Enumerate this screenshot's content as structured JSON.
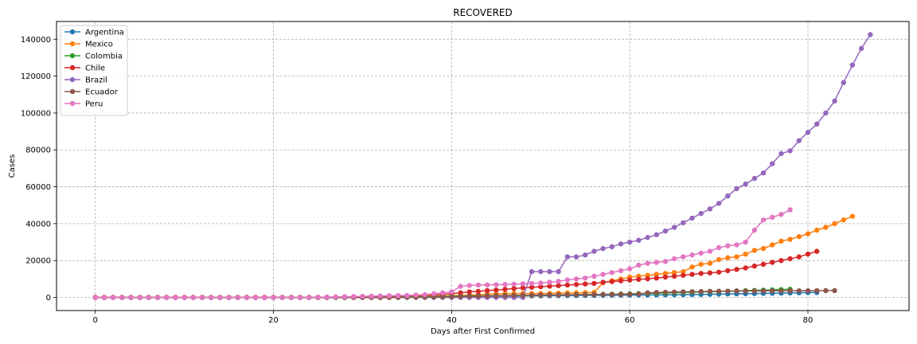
{
  "chart_data": {
    "type": "line",
    "title": "RECOVERED",
    "xlabel": "Days after First Confirmed",
    "ylabel": "Cases",
    "xlim": [
      -4.35,
      91.35
    ],
    "ylim": [
      -7125,
      149625
    ],
    "xticks": [
      0,
      20,
      40,
      60,
      80
    ],
    "yticks": [
      0,
      20000,
      40000,
      60000,
      80000,
      100000,
      120000,
      140000
    ],
    "grid": true,
    "legend_position": "upper-left",
    "series": [
      {
        "name": "Argentina",
        "color": "#1f77b4",
        "x": [
          0,
          1,
          2,
          3,
          4,
          5,
          6,
          7,
          8,
          9,
          10,
          11,
          12,
          13,
          14,
          15,
          16,
          17,
          18,
          19,
          20,
          21,
          22,
          23,
          24,
          25,
          26,
          27,
          28,
          29,
          30,
          31,
          32,
          33,
          34,
          35,
          36,
          37,
          38,
          39,
          40,
          41,
          42,
          43,
          44,
          45,
          46,
          47,
          48,
          49,
          50,
          51,
          52,
          53,
          54,
          55,
          56,
          57,
          58,
          59,
          60,
          61,
          62,
          63,
          64,
          65,
          66,
          67,
          68,
          69,
          70,
          71,
          72,
          73,
          74,
          75,
          76,
          77,
          78,
          79,
          80,
          81
        ],
        "y": [
          0,
          0,
          0,
          0,
          0,
          0,
          0,
          0,
          0,
          0,
          0,
          0,
          0,
          0,
          0,
          0,
          0,
          0,
          0,
          0,
          0,
          0,
          0,
          0,
          0,
          0,
          30,
          40,
          60,
          80,
          100,
          130,
          170,
          200,
          240,
          280,
          320,
          360,
          400,
          440,
          480,
          520,
          560,
          600,
          640,
          680,
          720,
          760,
          800,
          840,
          880,
          920,
          960,
          1000,
          1040,
          1080,
          1110,
          1140,
          1180,
          1220,
          1260,
          1300,
          1340,
          1380,
          1420,
          1460,
          1500,
          1560,
          1620,
          1700,
          1780,
          1860,
          1940,
          2020,
          2100,
          2180,
          2260,
          2340,
          2420,
          2500,
          2580,
          2650
        ]
      },
      {
        "name": "Mexico",
        "color": "#ff7f0e",
        "x": [
          0,
          1,
          2,
          3,
          4,
          5,
          6,
          7,
          8,
          9,
          10,
          11,
          12,
          13,
          14,
          15,
          16,
          17,
          18,
          19,
          20,
          21,
          22,
          23,
          24,
          25,
          26,
          27,
          28,
          29,
          30,
          31,
          32,
          33,
          34,
          35,
          36,
          37,
          38,
          39,
          40,
          41,
          42,
          43,
          44,
          45,
          46,
          47,
          48,
          49,
          50,
          51,
          52,
          53,
          54,
          55,
          56,
          57,
          58,
          59,
          60,
          61,
          62,
          63,
          64,
          65,
          66,
          67,
          68,
          69,
          70,
          71,
          72,
          73,
          74,
          75,
          76,
          77,
          78,
          79,
          80,
          81,
          82,
          83,
          84,
          85
        ],
        "y": [
          0,
          0,
          0,
          0,
          0,
          0,
          0,
          0,
          0,
          0,
          0,
          0,
          0,
          0,
          0,
          0,
          0,
          0,
          0,
          0,
          0,
          0,
          0,
          0,
          0,
          0,
          0,
          0,
          0,
          0,
          0,
          0,
          0,
          0,
          0,
          400,
          500,
          600,
          700,
          800,
          900,
          1100,
          1300,
          1500,
          1700,
          1900,
          2000,
          2100,
          2125,
          2125,
          2125,
          2200,
          2300,
          2400,
          2500,
          2600,
          2700,
          8000,
          9000,
          10000,
          11000,
          11500,
          12000,
          12500,
          13000,
          13500,
          14000,
          16500,
          18000,
          18500,
          20500,
          21500,
          22000,
          23500,
          25500,
          26500,
          28500,
          30500,
          31500,
          33000,
          34500,
          36500,
          38000,
          40000,
          42000,
          44000
        ]
      },
      {
        "name": "Colombia",
        "color": "#2ca02c",
        "x": [
          0,
          1,
          2,
          3,
          4,
          5,
          6,
          7,
          8,
          9,
          10,
          11,
          12,
          13,
          14,
          15,
          16,
          17,
          18,
          19,
          20,
          21,
          22,
          23,
          24,
          25,
          26,
          27,
          28,
          29,
          30,
          31,
          32,
          33,
          34,
          35,
          36,
          37,
          38,
          39,
          40,
          41,
          42,
          43,
          44,
          45,
          46,
          47,
          48,
          49,
          50,
          51,
          52,
          53,
          54,
          55,
          56,
          57,
          58,
          59,
          60,
          61,
          62,
          63,
          64,
          65,
          66,
          67,
          68,
          69,
          70,
          71,
          72,
          73,
          74,
          75,
          76,
          77,
          78
        ],
        "y": [
          0,
          0,
          0,
          0,
          0,
          0,
          0,
          0,
          0,
          0,
          0,
          0,
          0,
          0,
          0,
          0,
          0,
          0,
          0,
          0,
          0,
          0,
          0,
          0,
          0,
          0,
          10,
          20,
          40,
          60,
          90,
          120,
          160,
          200,
          260,
          320,
          380,
          440,
          500,
          560,
          620,
          680,
          740,
          800,
          860,
          920,
          980,
          1040,
          1100,
          1160,
          1220,
          1280,
          1340,
          1400,
          1460,
          1520,
          1580,
          1650,
          1740,
          1840,
          1950,
          2060,
          2180,
          2300,
          2430,
          2560,
          2690,
          2830,
          2970,
          3110,
          3250,
          3390,
          3530,
          3670,
          3810,
          3950,
          4100,
          4250,
          4400
        ]
      },
      {
        "name": "Chile",
        "color": "#d62728",
        "x": [
          0,
          1,
          2,
          3,
          4,
          5,
          6,
          7,
          8,
          9,
          10,
          11,
          12,
          13,
          14,
          15,
          16,
          17,
          18,
          19,
          20,
          21,
          22,
          23,
          24,
          25,
          26,
          27,
          28,
          29,
          30,
          31,
          32,
          33,
          34,
          35,
          36,
          37,
          38,
          39,
          40,
          41,
          42,
          43,
          44,
          45,
          46,
          47,
          48,
          49,
          50,
          51,
          52,
          53,
          54,
          55,
          56,
          57,
          58,
          59,
          60,
          61,
          62,
          63,
          64,
          65,
          66,
          67,
          68,
          69,
          70,
          71,
          72,
          73,
          74,
          75,
          76,
          77,
          78,
          79,
          80,
          81
        ],
        "y": [
          0,
          0,
          0,
          0,
          0,
          0,
          0,
          0,
          0,
          0,
          0,
          0,
          0,
          0,
          0,
          0,
          0,
          0,
          0,
          0,
          0,
          0,
          0,
          0,
          0,
          0,
          50,
          100,
          200,
          300,
          400,
          500,
          600,
          700,
          800,
          900,
          1000,
          1200,
          1400,
          1600,
          2000,
          2500,
          3000,
          3300,
          3700,
          4000,
          4400,
          4800,
          5200,
          5500,
          5800,
          6100,
          6400,
          6700,
          7000,
          7300,
          7600,
          8200,
          8600,
          9000,
          9400,
          9800,
          10100,
          10500,
          11000,
          11500,
          12000,
          12500,
          13000,
          13300,
          13700,
          14500,
          15200,
          16000,
          17000,
          18000,
          19000,
          20000,
          21000,
          22000,
          23500,
          25000
        ]
      },
      {
        "name": "Brazil",
        "color": "#9467bd",
        "x": [
          0,
          1,
          2,
          3,
          4,
          5,
          6,
          7,
          8,
          9,
          10,
          11,
          12,
          13,
          14,
          15,
          16,
          17,
          18,
          19,
          20,
          21,
          22,
          23,
          24,
          25,
          26,
          27,
          28,
          29,
          30,
          31,
          32,
          33,
          34,
          35,
          36,
          37,
          38,
          39,
          40,
          41,
          42,
          43,
          44,
          45,
          46,
          47,
          48,
          49,
          50,
          51,
          52,
          53,
          54,
          55,
          56,
          57,
          58,
          59,
          60,
          61,
          62,
          63,
          64,
          65,
          66,
          67,
          68,
          69,
          70,
          71,
          72,
          73,
          74,
          75,
          76,
          77,
          78,
          79,
          80,
          81,
          82,
          83,
          84,
          85,
          86,
          87
        ],
        "y": [
          0,
          0,
          0,
          0,
          0,
          0,
          0,
          0,
          0,
          0,
          0,
          0,
          0,
          0,
          0,
          0,
          0,
          0,
          0,
          0,
          0,
          0,
          0,
          0,
          0,
          0,
          0,
          0,
          0,
          0,
          0,
          0,
          0,
          0,
          0,
          0,
          0,
          0,
          0,
          0,
          0,
          0,
          0,
          0,
          0,
          0,
          0,
          0,
          0,
          14000,
          14000,
          14000,
          14000,
          22000,
          22000,
          23000,
          25000,
          26500,
          27500,
          29000,
          30000,
          31000,
          32500,
          34000,
          36000,
          38000,
          40500,
          43000,
          45500,
          48000,
          51000,
          55000,
          59000,
          61500,
          64500,
          67500,
          72500,
          78000,
          79500,
          85000,
          89500,
          94000,
          100000,
          106500,
          116500,
          126000,
          135000,
          142500
        ]
      },
      {
        "name": "Ecuador",
        "color": "#8c564b",
        "x": [
          0,
          1,
          2,
          3,
          4,
          5,
          6,
          7,
          8,
          9,
          10,
          11,
          12,
          13,
          14,
          15,
          16,
          17,
          18,
          19,
          20,
          21,
          22,
          23,
          24,
          25,
          26,
          27,
          28,
          29,
          30,
          31,
          32,
          33,
          34,
          35,
          36,
          37,
          38,
          39,
          40,
          41,
          42,
          43,
          44,
          45,
          46,
          47,
          48,
          49,
          50,
          51,
          52,
          53,
          54,
          55,
          56,
          57,
          58,
          59,
          60,
          61,
          62,
          63,
          64,
          65,
          66,
          67,
          68,
          69,
          70,
          71,
          72,
          73,
          74,
          75,
          76,
          77,
          78,
          79,
          80,
          81,
          82,
          83
        ],
        "y": [
          0,
          0,
          0,
          0,
          0,
          0,
          0,
          0,
          0,
          0,
          0,
          0,
          0,
          0,
          0,
          0,
          0,
          0,
          0,
          0,
          0,
          0,
          0,
          0,
          0,
          0,
          0,
          0,
          0,
          0,
          0,
          0,
          0,
          0,
          0,
          50,
          100,
          150,
          200,
          300,
          400,
          500,
          600,
          700,
          800,
          900,
          1000,
          1100,
          1150,
          1200,
          1250,
          1300,
          1350,
          1400,
          1450,
          1500,
          1550,
          1600,
          1650,
          1700,
          1800,
          1900,
          2500,
          2700,
          2800,
          2900,
          3000,
          3100,
          3200,
          3300,
          3350,
          3400,
          3450,
          3500,
          3500,
          3500,
          3550,
          3550,
          3600,
          3600,
          3600,
          3650,
          3700,
          3700
        ]
      },
      {
        "name": "Peru",
        "color": "#e377c2",
        "x": [
          0,
          1,
          2,
          3,
          4,
          5,
          6,
          7,
          8,
          9,
          10,
          11,
          12,
          13,
          14,
          15,
          16,
          17,
          18,
          19,
          20,
          21,
          22,
          23,
          24,
          25,
          26,
          27,
          28,
          29,
          30,
          31,
          32,
          33,
          34,
          35,
          36,
          37,
          38,
          39,
          40,
          41,
          42,
          43,
          44,
          45,
          46,
          47,
          48,
          49,
          50,
          51,
          52,
          53,
          54,
          55,
          56,
          57,
          58,
          59,
          60,
          61,
          62,
          63,
          64,
          65,
          66,
          67,
          68,
          69,
          70,
          71,
          72,
          73,
          74,
          75,
          76,
          77,
          78
        ],
        "y": [
          0,
          0,
          0,
          0,
          0,
          0,
          0,
          0,
          0,
          0,
          0,
          0,
          0,
          0,
          0,
          0,
          0,
          0,
          0,
          0,
          0,
          0,
          0,
          0,
          0,
          100,
          200,
          300,
          400,
          500,
          600,
          700,
          800,
          900,
          1000,
          1100,
          1300,
          1500,
          2000,
          2500,
          3000,
          6000,
          6500,
          6700,
          6800,
          6900,
          7000,
          7200,
          7400,
          7600,
          7800,
          8200,
          8700,
          9500,
          10000,
          10500,
          11500,
          12500,
          13500,
          14500,
          15500,
          17500,
          18500,
          19000,
          19500,
          21000,
          22000,
          23000,
          24000,
          25000,
          27000,
          28000,
          28500,
          30000,
          36500,
          42000,
          43500,
          45000,
          47500
        ]
      }
    ]
  }
}
